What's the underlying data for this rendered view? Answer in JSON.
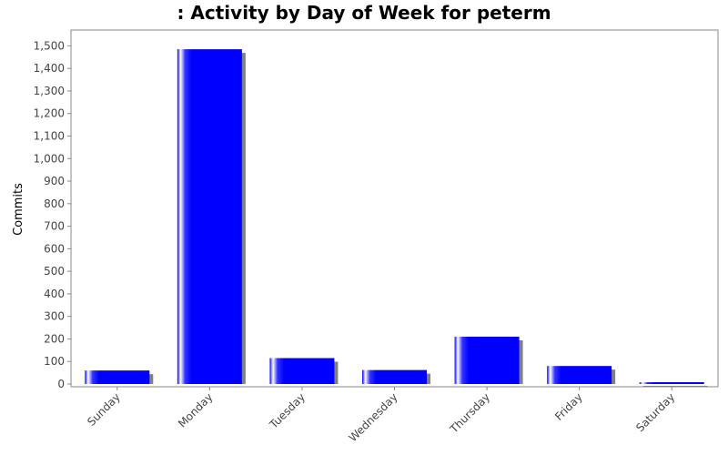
{
  "chart_data": {
    "type": "bar",
    "title": ": Activity by Day of Week for peterm",
    "xlabel": "",
    "ylabel": "Commits",
    "categories": [
      "Sunday",
      "Monday",
      "Tuesday",
      "Wednesday",
      "Thursday",
      "Friday",
      "Saturday"
    ],
    "values": [
      60,
      1485,
      115,
      62,
      210,
      80,
      8
    ],
    "ylim": [
      0,
      1550
    ],
    "yticks": [
      0,
      100,
      200,
      300,
      400,
      500,
      600,
      700,
      800,
      900,
      1000,
      1100,
      1200,
      1300,
      1400,
      1500
    ],
    "ytick_labels": [
      "0",
      "100",
      "200",
      "300",
      "400",
      "500",
      "600",
      "700",
      "800",
      "900",
      "1,000",
      "1,100",
      "1,200",
      "1,300",
      "1,400",
      "1,500"
    ],
    "grid": false,
    "bar_color": "#0000ff",
    "shadow_color": "#808080"
  }
}
